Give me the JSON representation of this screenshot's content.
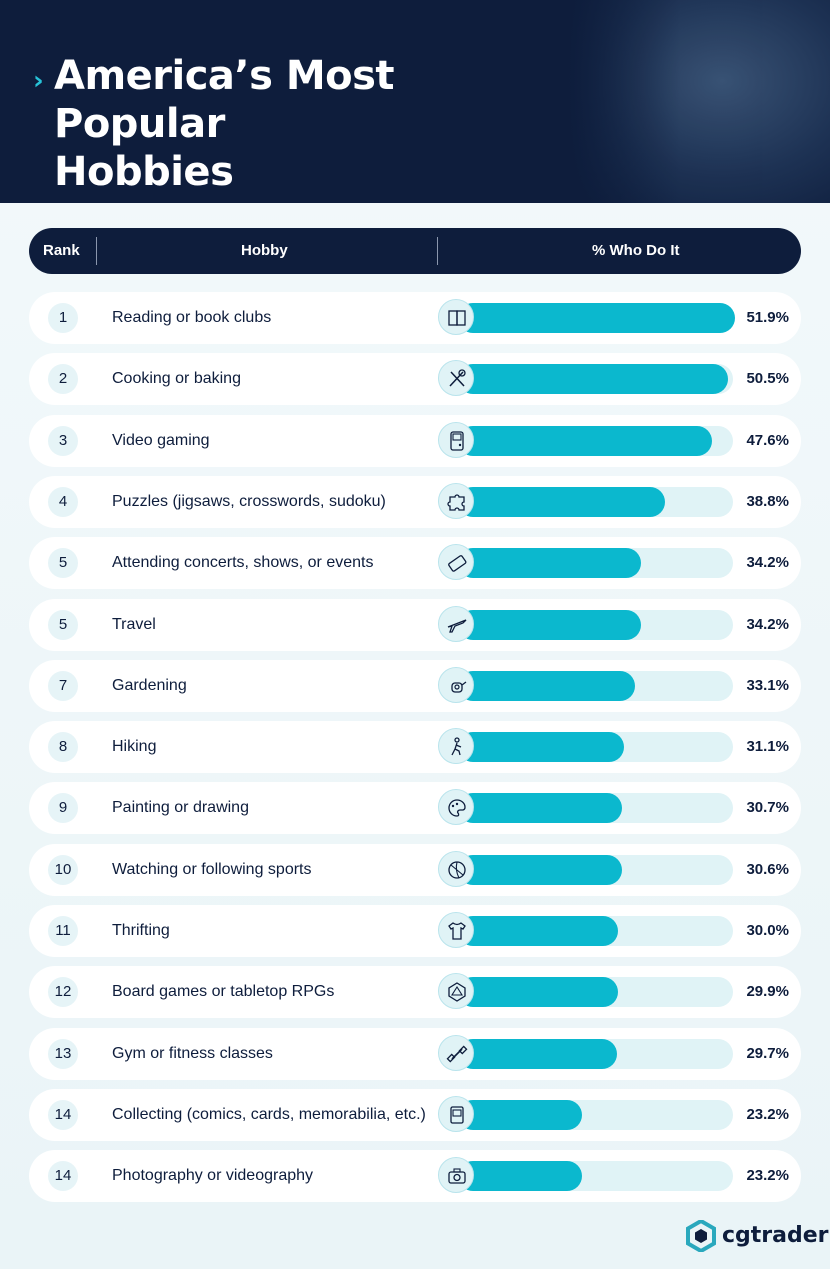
{
  "title_line1": "America’s Most Popular",
  "title_line2": "Hobbies",
  "columns": {
    "rank": "Rank",
    "hobby": "Hobby",
    "pct": "% Who Do It"
  },
  "brand": "cgtrader",
  "colors": {
    "navy": "#0e1d3c",
    "teal": "#0bb8ce",
    "track": "#e0f3f6"
  },
  "chart_data": {
    "type": "bar",
    "title": "America’s Most Popular Hobbies",
    "xlabel": "% Who Do It",
    "ylabel": "Hobby",
    "orientation": "horizontal",
    "xlim": [
      0,
      55
    ],
    "rows": [
      {
        "rank": "1",
        "hobby": "Reading or book clubs",
        "value": 51.9,
        "label": "51.9%",
        "icon": "book-icon"
      },
      {
        "rank": "2",
        "hobby": "Cooking or baking",
        "value": 50.5,
        "label": "50.5%",
        "icon": "utensils-icon"
      },
      {
        "rank": "3",
        "hobby": "Video gaming",
        "value": 47.6,
        "label": "47.6%",
        "icon": "gameboy-icon"
      },
      {
        "rank": "4",
        "hobby": "Puzzles (jigsaws, crosswords, sudoku)",
        "value": 38.8,
        "label": "38.8%",
        "icon": "puzzle-icon"
      },
      {
        "rank": "5",
        "hobby": "Attending concerts, shows, or events",
        "value": 34.2,
        "label": "34.2%",
        "icon": "ticket-icon"
      },
      {
        "rank": "5",
        "hobby": "Travel",
        "value": 34.2,
        "label": "34.2%",
        "icon": "airplane-icon"
      },
      {
        "rank": "7",
        "hobby": "Gardening",
        "value": 33.1,
        "label": "33.1%",
        "icon": "watering-can-icon"
      },
      {
        "rank": "8",
        "hobby": "Hiking",
        "value": 31.1,
        "label": "31.1%",
        "icon": "hiker-icon"
      },
      {
        "rank": "9",
        "hobby": "Painting or drawing",
        "value": 30.7,
        "label": "30.7%",
        "icon": "palette-icon"
      },
      {
        "rank": "10",
        "hobby": "Watching or following sports",
        "value": 30.6,
        "label": "30.6%",
        "icon": "sports-ball-icon"
      },
      {
        "rank": "11",
        "hobby": "Thrifting",
        "value": 30.0,
        "label": "30.0%",
        "icon": "shirt-tag-icon"
      },
      {
        "rank": "12",
        "hobby": "Board games or tabletop RPGs",
        "value": 29.9,
        "label": "29.9%",
        "icon": "d20-dice-icon"
      },
      {
        "rank": "13",
        "hobby": "Gym or fitness classes",
        "value": 29.7,
        "label": "29.7%",
        "icon": "dumbbell-icon"
      },
      {
        "rank": "14",
        "hobby": "Collecting (comics, cards, memorabilia, etc.)",
        "value": 23.2,
        "label": "23.2%",
        "icon": "trading-card-icon"
      },
      {
        "rank": "14",
        "hobby": "Photography or videography",
        "value": 23.2,
        "label": "23.2%",
        "icon": "camera-icon"
      }
    ]
  }
}
